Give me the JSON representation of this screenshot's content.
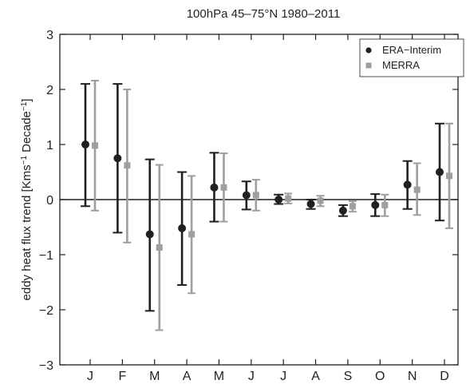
{
  "chart_data": {
    "type": "scatter",
    "title": "100hPa 45–75°N 1980–2011",
    "xlabel": "",
    "ylabel": "eddy heat flux trend [Kms",
    "ylabel_sup1": "−1",
    "ylabel_mid": " Decade",
    "ylabel_sup2": "−1",
    "ylabel_end": "]",
    "categories": [
      "J",
      "F",
      "M",
      "A",
      "M",
      "J",
      "J",
      "A",
      "S",
      "O",
      "N",
      "D"
    ],
    "ylim": [
      -3,
      3
    ],
    "yticks": [
      -3,
      -2,
      -1,
      0,
      1,
      2,
      3
    ],
    "ytick_labels": [
      "−3",
      "−2",
      "−1",
      "0",
      "1",
      "2",
      "3"
    ],
    "grid": false,
    "zero_line": true,
    "legend_position": "top-right",
    "series": [
      {
        "name": "ERA−Interim",
        "marker": "circle",
        "color": "#231f20",
        "values": [
          1.0,
          0.75,
          -0.63,
          -0.52,
          0.22,
          0.08,
          0.0,
          -0.08,
          -0.2,
          -0.1,
          0.27,
          0.5
        ],
        "lower": [
          -0.12,
          -0.6,
          -2.02,
          -1.55,
          -0.4,
          -0.18,
          -0.08,
          -0.17,
          -0.3,
          -0.3,
          -0.17,
          -0.38
        ],
        "upper": [
          2.1,
          2.1,
          0.73,
          0.5,
          0.85,
          0.33,
          0.09,
          0.0,
          -0.1,
          0.1,
          0.7,
          1.38
        ]
      },
      {
        "name": "MERRA",
        "marker": "square",
        "color": "#9d9fa2",
        "values": [
          0.98,
          0.62,
          -0.87,
          -0.63,
          0.22,
          0.08,
          0.02,
          -0.02,
          -0.12,
          -0.1,
          0.18,
          0.43
        ],
        "lower": [
          -0.2,
          -0.78,
          -2.37,
          -1.7,
          -0.4,
          -0.2,
          -0.07,
          -0.12,
          -0.22,
          -0.3,
          -0.28,
          -0.52
        ],
        "upper": [
          2.16,
          2.0,
          0.63,
          0.43,
          0.84,
          0.36,
          0.11,
          0.07,
          -0.03,
          0.09,
          0.66,
          1.38
        ]
      }
    ]
  }
}
